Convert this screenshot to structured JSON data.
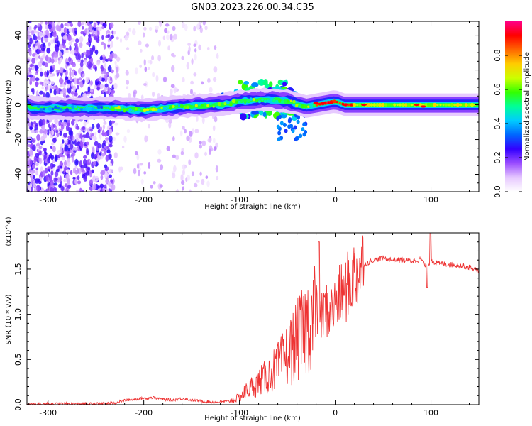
{
  "title": "GN03.2023.226.00.34.C35",
  "chart_data": [
    {
      "type": "heatmap",
      "xlabel": "Height of straight line (km)",
      "ylabel": "Frequency (Hz)",
      "xlim": [
        -322,
        150
      ],
      "ylim": [
        -50,
        48
      ],
      "xticks": [
        -300,
        -200,
        -100,
        0,
        100
      ],
      "yticks": [
        -40,
        -20,
        0,
        20,
        40
      ],
      "colorbar": {
        "label": "Normalized spectral amplitude",
        "range": [
          0,
          1
        ],
        "ticks": [
          "0.0",
          "0.2",
          "0.4",
          "0.6",
          "0.8"
        ],
        "colors": [
          "#ffffff",
          "#e6c8ff",
          "#9b4dff",
          "#3300ff",
          "#0066ff",
          "#00ccff",
          "#00ff99",
          "#33ff00",
          "#ccff00",
          "#ffcc00",
          "#ff6600",
          "#ff0000",
          "#ff0088"
        ]
      },
      "ridge_profile": [
        {
          "x": -320,
          "f": -2
        },
        {
          "x": -240,
          "f": -2
        },
        {
          "x": -200,
          "f": -3
        },
        {
          "x": -160,
          "f": -1
        },
        {
          "x": -120,
          "f": 0
        },
        {
          "x": -100,
          "f": 2
        },
        {
          "x": -70,
          "f": 3
        },
        {
          "x": -50,
          "f": 2
        },
        {
          "x": -30,
          "f": -1
        },
        {
          "x": -10,
          "f": 1
        },
        {
          "x": 0,
          "f": 2
        },
        {
          "x": 10,
          "f": 0
        },
        {
          "x": 50,
          "f": 0
        },
        {
          "x": 100,
          "f": 0
        },
        {
          "x": 150,
          "f": 0
        }
      ]
    },
    {
      "type": "line",
      "xlabel": "Height of straight line (km)",
      "ylabel": "SNR (10 * v/v)",
      "yscale_note": "(x10^4)",
      "xlim": [
        -322,
        150
      ],
      "ylim": [
        0,
        1.9
      ],
      "xticks": [
        -300,
        -200,
        -100,
        0,
        100
      ],
      "yticks": [
        "0.0",
        "0.5",
        "1.0",
        "1.5"
      ],
      "color": "#ee3333",
      "series": [
        {
          "x": [
            -322,
            -300,
            -250,
            -230,
            -220,
            -210,
            -190,
            -180,
            -170,
            -160,
            -150,
            -140,
            -130,
            -120,
            -110,
            -100,
            -90,
            -80,
            -70,
            -60,
            -50,
            -40,
            -30,
            -25,
            -20,
            -15,
            -10,
            -5,
            0,
            5,
            10,
            15,
            20,
            25,
            30,
            40,
            50,
            60,
            70,
            80,
            90,
            95,
            98,
            100,
            105,
            110,
            120,
            130,
            140,
            150
          ],
          "y": [
            0.0,
            0.01,
            0.01,
            0.02,
            0.05,
            0.06,
            0.08,
            0.06,
            0.05,
            0.07,
            0.05,
            0.04,
            0.03,
            0.03,
            0.04,
            0.08,
            0.18,
            0.25,
            0.32,
            0.42,
            0.55,
            0.7,
            0.85,
            0.95,
            1.05,
            0.95,
            1.05,
            1.02,
            1.1,
            1.2,
            1.25,
            1.35,
            1.42,
            1.5,
            1.55,
            1.6,
            1.62,
            1.6,
            1.6,
            1.59,
            1.61,
            1.52,
            1.56,
            1.6,
            1.57,
            1.56,
            1.55,
            1.54,
            1.52,
            1.48
          ]
        }
      ]
    }
  ]
}
